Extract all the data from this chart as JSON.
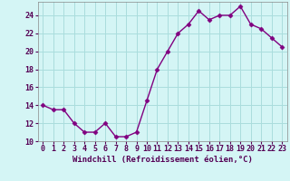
{
  "x": [
    0,
    1,
    2,
    3,
    4,
    5,
    6,
    7,
    8,
    9,
    10,
    11,
    12,
    13,
    14,
    15,
    16,
    17,
    18,
    19,
    20,
    21,
    22,
    23
  ],
  "y": [
    14,
    13.5,
    13.5,
    12,
    11,
    11,
    12,
    10.5,
    10.5,
    11,
    14.5,
    18,
    20,
    22,
    23,
    24.5,
    23.5,
    24,
    24,
    25,
    23,
    22.5,
    21.5,
    20.5
  ],
  "line_color": "#800080",
  "marker_color": "#800080",
  "bg_color": "#d4f5f5",
  "grid_color": "#aadddd",
  "xlabel": "Windchill (Refroidissement éolien,°C)",
  "ylim": [
    10,
    25
  ],
  "xlim": [
    -0.5,
    23.5
  ],
  "yticks": [
    10,
    12,
    14,
    16,
    18,
    20,
    22,
    24
  ],
  "xticks": [
    0,
    1,
    2,
    3,
    4,
    5,
    6,
    7,
    8,
    9,
    10,
    11,
    12,
    13,
    14,
    15,
    16,
    17,
    18,
    19,
    20,
    21,
    22,
    23
  ],
  "xlabel_fontsize": 6.5,
  "tick_fontsize": 6,
  "line_width": 1.0,
  "marker_size": 2.5
}
